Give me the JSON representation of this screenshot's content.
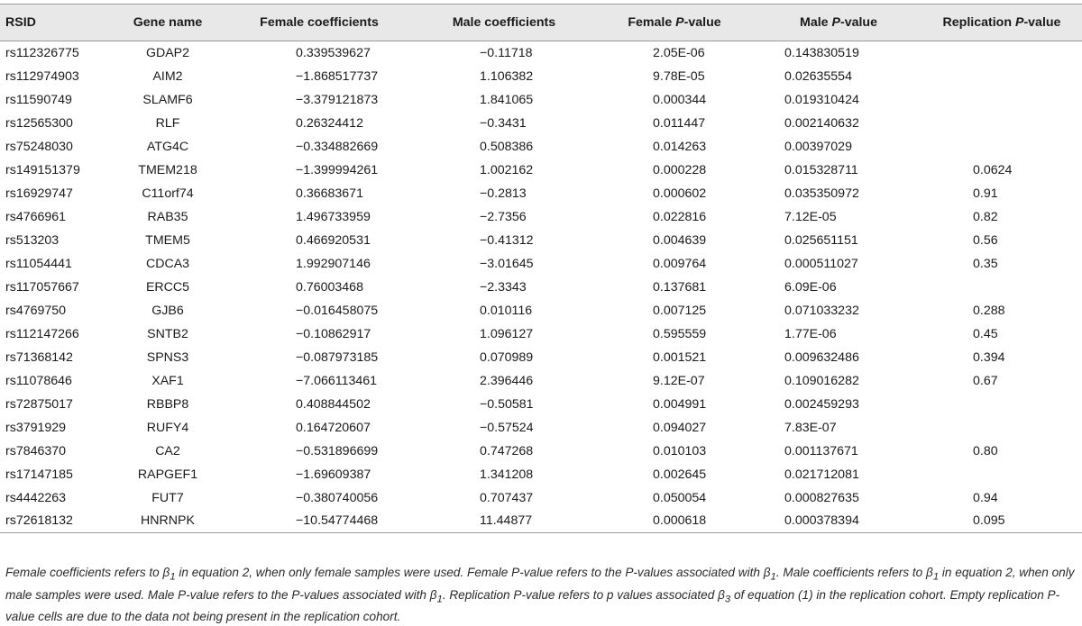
{
  "table": {
    "headers": {
      "rsid": "RSID",
      "gene": "Gene name",
      "female_coef": "Female coefficients",
      "male_coef": "Male coefficients",
      "female_p_prefix": "Female ",
      "male_p_prefix": "Male ",
      "replication_p_prefix": "Replication ",
      "p_symbol": "P",
      "p_suffix": "-value"
    },
    "rows": [
      {
        "rsid": "rs112326775",
        "gene": "GDAP2",
        "female_coef": "0.339539627",
        "male_coef": "−0.11718",
        "female_p": "2.05E-06",
        "male_p": "0.143830519",
        "replication_p": ""
      },
      {
        "rsid": "rs112974903",
        "gene": "AIM2",
        "female_coef": "−1.868517737",
        "male_coef": "1.106382",
        "female_p": "9.78E-05",
        "male_p": "0.02635554",
        "replication_p": ""
      },
      {
        "rsid": "rs11590749",
        "gene": "SLAMF6",
        "female_coef": "−3.379121873",
        "male_coef": "1.841065",
        "female_p": "0.000344",
        "male_p": "0.019310424",
        "replication_p": ""
      },
      {
        "rsid": "rs12565300",
        "gene": "RLF",
        "female_coef": "0.26324412",
        "male_coef": "−0.3431",
        "female_p": "0.011447",
        "male_p": "0.002140632",
        "replication_p": ""
      },
      {
        "rsid": "rs75248030",
        "gene": "ATG4C",
        "female_coef": "−0.334882669",
        "male_coef": "0.508386",
        "female_p": "0.014263",
        "male_p": "0.00397029",
        "replication_p": ""
      },
      {
        "rsid": "rs149151379",
        "gene": "TMEM218",
        "female_coef": "−1.399994261",
        "male_coef": "1.002162",
        "female_p": "0.000228",
        "male_p": "0.015328711",
        "replication_p": "0.0624"
      },
      {
        "rsid": "rs16929747",
        "gene": "C11orf74",
        "female_coef": "0.36683671",
        "male_coef": "−0.2813",
        "female_p": "0.000602",
        "male_p": "0.035350972",
        "replication_p": "0.91"
      },
      {
        "rsid": "rs4766961",
        "gene": "RAB35",
        "female_coef": "1.496733959",
        "male_coef": "−2.7356",
        "female_p": "0.022816",
        "male_p": "7.12E-05",
        "replication_p": "0.82"
      },
      {
        "rsid": "rs513203",
        "gene": "TMEM5",
        "female_coef": "0.466920531",
        "male_coef": "−0.41312",
        "female_p": "0.004639",
        "male_p": "0.025651151",
        "replication_p": "0.56"
      },
      {
        "rsid": "rs11054441",
        "gene": "CDCA3",
        "female_coef": "1.992907146",
        "male_coef": "−3.01645",
        "female_p": "0.009764",
        "male_p": "0.000511027",
        "replication_p": "0.35"
      },
      {
        "rsid": "rs117057667",
        "gene": "ERCC5",
        "female_coef": "0.76003468",
        "male_coef": "−2.3343",
        "female_p": "0.137681",
        "male_p": "6.09E-06",
        "replication_p": ""
      },
      {
        "rsid": "rs4769750",
        "gene": "GJB6",
        "female_coef": "−0.016458075",
        "male_coef": "0.010116",
        "female_p": "0.007125",
        "male_p": "0.071033232",
        "replication_p": "0.288"
      },
      {
        "rsid": "rs112147266",
        "gene": "SNTB2",
        "female_coef": "−0.10862917",
        "male_coef": "1.096127",
        "female_p": "0.595559",
        "male_p": "1.77E-06",
        "replication_p": "0.45"
      },
      {
        "rsid": "rs71368142",
        "gene": "SPNS3",
        "female_coef": "−0.087973185",
        "male_coef": "0.070989",
        "female_p": "0.001521",
        "male_p": "0.009632486",
        "replication_p": "0.394"
      },
      {
        "rsid": "rs11078646",
        "gene": "XAF1",
        "female_coef": "−7.066113461",
        "male_coef": "2.396446",
        "female_p": "9.12E-07",
        "male_p": "0.109016282",
        "replication_p": "0.67"
      },
      {
        "rsid": "rs72875017",
        "gene": "RBBP8",
        "female_coef": "0.408844502",
        "male_coef": "−0.50581",
        "female_p": "0.004991",
        "male_p": "0.002459293",
        "replication_p": ""
      },
      {
        "rsid": "rs3791929",
        "gene": "RUFY4",
        "female_coef": "0.164720607",
        "male_coef": "−0.57524",
        "female_p": "0.094027",
        "male_p": "7.83E-07",
        "replication_p": ""
      },
      {
        "rsid": "rs7846370",
        "gene": "CA2",
        "female_coef": "−0.531896699",
        "male_coef": "0.747268",
        "female_p": "0.010103",
        "male_p": "0.001137671",
        "replication_p": "0.80"
      },
      {
        "rsid": "rs17147185",
        "gene": "RAPGEF1",
        "female_coef": "−1.69609387",
        "male_coef": "1.341208",
        "female_p": "0.002645",
        "male_p": "0.021712081",
        "replication_p": ""
      },
      {
        "rsid": "rs4442263",
        "gene": "FUT7",
        "female_coef": "−0.380740056",
        "male_coef": "0.707437",
        "female_p": "0.050054",
        "male_p": "0.000827635",
        "replication_p": "0.94"
      },
      {
        "rsid": "rs72618132",
        "gene": "HNRNPK",
        "female_coef": "−10.54774468",
        "male_coef": "11.44877",
        "female_p": "0.000618",
        "male_p": "0.000378394",
        "replication_p": "0.095"
      }
    ]
  },
  "footnote": {
    "t1": "Female coefficients refers to ",
    "beta": "β",
    "sub1": "1",
    "sub3": "3",
    "t2": " in equation 2, when only female samples were used. Female P-value refers to the P-values associated with ",
    "t3": ". Male coefficients refers to ",
    "t4": " in equation 2, when only male samples were used. Male P-value refers to the P-values associated with ",
    "t5": ". Replication P-value refers to p values associated ",
    "t6": " of equation (1) in the replication cohort. Empty replication P-value cells are due to the data not being present in the replication cohort."
  }
}
